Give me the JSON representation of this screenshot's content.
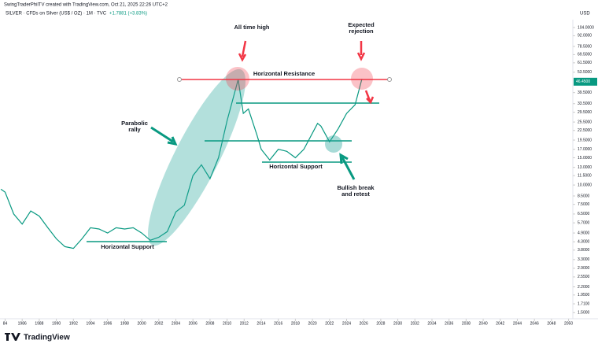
{
  "header": {
    "author_line": "SwingTraderPhilTV created with TradingView.com, Oct 21, 2025 22:26 UTC+2",
    "symbol_line": "SILVER · CFDs on Silver (US$ / OZ) · 1M · TVC",
    "change": "+1.7881 (+3.83%)"
  },
  "footer": {
    "brand": "TradingView"
  },
  "chart_data": {
    "type": "line",
    "currency": "USD",
    "log_scale": true,
    "color": "#089981",
    "x": [
      1983.5,
      1984,
      1985,
      1986,
      1987,
      1988,
      1989,
      1990,
      1991,
      1992,
      1993,
      1994,
      1995,
      1996,
      1997,
      1998,
      1999,
      2000,
      2001,
      2002,
      2003,
      2004,
      2005,
      2006,
      2007,
      2008,
      2009,
      2010,
      2011.3,
      2011.9,
      2012.5,
      2013.5,
      2014,
      2015,
      2016,
      2017,
      2018,
      2019,
      2020.6,
      2021,
      2022,
      2023,
      2024,
      2025,
      2025.8
    ],
    "values": [
      9.4,
      9.0,
      6.5,
      5.6,
      6.8,
      6.3,
      5.3,
      4.5,
      4.0,
      3.9,
      4.5,
      5.3,
      5.2,
      4.9,
      5.3,
      5.2,
      5.3,
      4.9,
      4.4,
      4.6,
      5.0,
      6.7,
      7.4,
      11.5,
      13.5,
      11.0,
      15,
      26,
      48,
      29,
      31,
      21,
      17,
      14.5,
      17,
      16.5,
      15,
      17,
      25,
      24,
      19,
      23,
      29,
      33,
      48.5
    ],
    "last_price": {
      "value": 46.45,
      "label": "46.4500"
    },
    "xlim": [
      1983.4,
      2050.5
    ],
    "xticks": [
      {
        "value": 1984,
        "label": "84"
      },
      1986,
      1988,
      1990,
      1992,
      1994,
      1996,
      1998,
      2000,
      2002,
      2004,
      2006,
      2008,
      2010,
      2012,
      2014,
      2016,
      2018,
      2020,
      2022,
      2024,
      2026,
      2028,
      2030,
      2032,
      2034,
      2036,
      2038,
      2040,
      2042,
      2044,
      2046,
      2048,
      2050
    ],
    "ylim": [
      1.37,
      121
    ],
    "yticks": [
      {
        "value": 104,
        "label": "104.0000"
      },
      {
        "value": 92,
        "label": "92.0000"
      },
      {
        "value": 78.5,
        "label": "78.5000"
      },
      {
        "value": 69.5,
        "label": "69.5000"
      },
      {
        "value": 61.5,
        "label": "61.5000"
      },
      {
        "value": 53.5,
        "label": "53.5000"
      },
      {
        "value": 39.5,
        "label": "39.5000"
      },
      {
        "value": 33.5,
        "label": "33.5000"
      },
      {
        "value": 29.5,
        "label": "29.5000"
      },
      {
        "value": 25.5,
        "label": "25.5000"
      },
      {
        "value": 22.5,
        "label": "22.5000"
      },
      {
        "value": 19.5,
        "label": "19.5000"
      },
      {
        "value": 17,
        "label": "17.0000"
      },
      {
        "value": 15,
        "label": "15.0000"
      },
      {
        "value": 13,
        "label": "13.0000"
      },
      {
        "value": 11.5,
        "label": "11.5000"
      },
      {
        "value": 10,
        "label": "10.0000"
      },
      {
        "value": 8.5,
        "label": "8.5000"
      },
      {
        "value": 7.5,
        "label": "7.5000"
      },
      {
        "value": 6.5,
        "label": "6.5000"
      },
      {
        "value": 5.7,
        "label": "5.7000"
      },
      {
        "value": 4.9,
        "label": "4.9000"
      },
      {
        "value": 4.3,
        "label": "4.3000"
      },
      {
        "value": 3.8,
        "label": "3.8000"
      },
      {
        "value": 3.3,
        "label": "3.3000"
      },
      {
        "value": 2.9,
        "label": "2.9000"
      },
      {
        "value": 2.55,
        "label": "2.5500"
      },
      {
        "value": 2.2,
        "label": "2.2000"
      },
      {
        "value": 1.95,
        "label": "1.9500"
      },
      {
        "value": 1.71,
        "label": "1.7100"
      },
      {
        "value": 1.5,
        "label": "1.5000"
      }
    ],
    "annotations": {
      "ath": "All time high",
      "expected": "Expected",
      "rejection": "rejection",
      "resistance": "Horizontal Resistance",
      "parabolic": "Parabolic",
      "rally": "rally",
      "support_low": "Horizontal Support",
      "support_mid": "Horizontal Support",
      "bullish": "Bullish break",
      "retest": "and retest"
    }
  }
}
